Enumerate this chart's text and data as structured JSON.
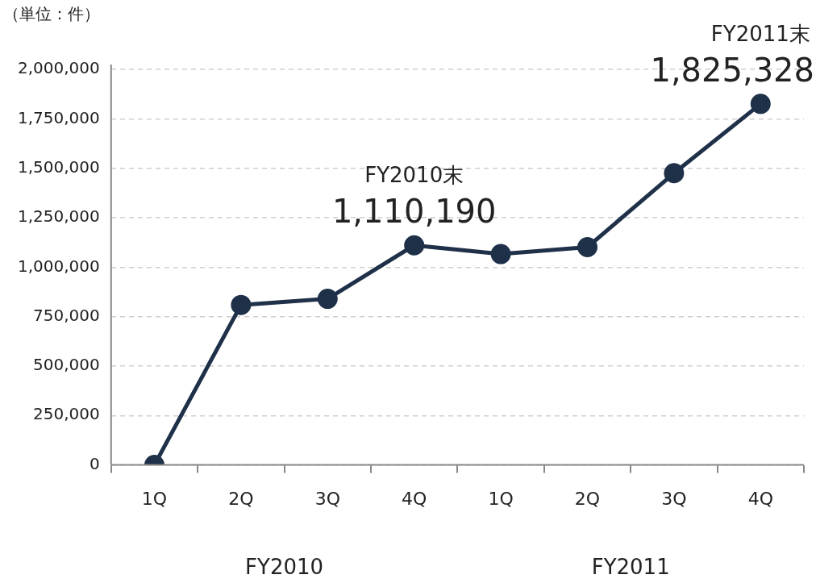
{
  "chart_data": {
    "type": "line",
    "categories": [
      "1Q",
      "2Q",
      "3Q",
      "4Q",
      "1Q",
      "2Q",
      "3Q",
      "4Q"
    ],
    "series": [
      {
        "color": "#1f3049",
        "values": [
          0,
          809000,
          840000,
          1110190,
          1066000,
          1101000,
          1475000,
          1825328
        ],
        "value_labels": [
          null,
          null,
          null,
          "1,110,190",
          null,
          null,
          null,
          "1,825,328"
        ]
      }
    ],
    "ylim": [
      0,
      2000000
    ],
    "yticks": [
      {
        "value": 0,
        "label": "0"
      },
      {
        "value": 250000,
        "label": "250,000"
      },
      {
        "value": 500000,
        "label": "500,000"
      },
      {
        "value": 750000,
        "label": "750,000"
      },
      {
        "value": 1000000,
        "label": "1,000,000"
      },
      {
        "value": 1250000,
        "label": "1,250,000"
      },
      {
        "value": 1500000,
        "label": "1,500,000"
      },
      {
        "value": 1750000,
        "label": "1,750,000"
      },
      {
        "value": 2000000,
        "label": "2,000,000"
      }
    ],
    "grid": "y",
    "legend": false,
    "marker": "circle",
    "line_style": "solid",
    "annotations": [
      "（単位：件）",
      "FY2010",
      "FY2011",
      "FY2010末",
      "FY2011末"
    ]
  }
}
